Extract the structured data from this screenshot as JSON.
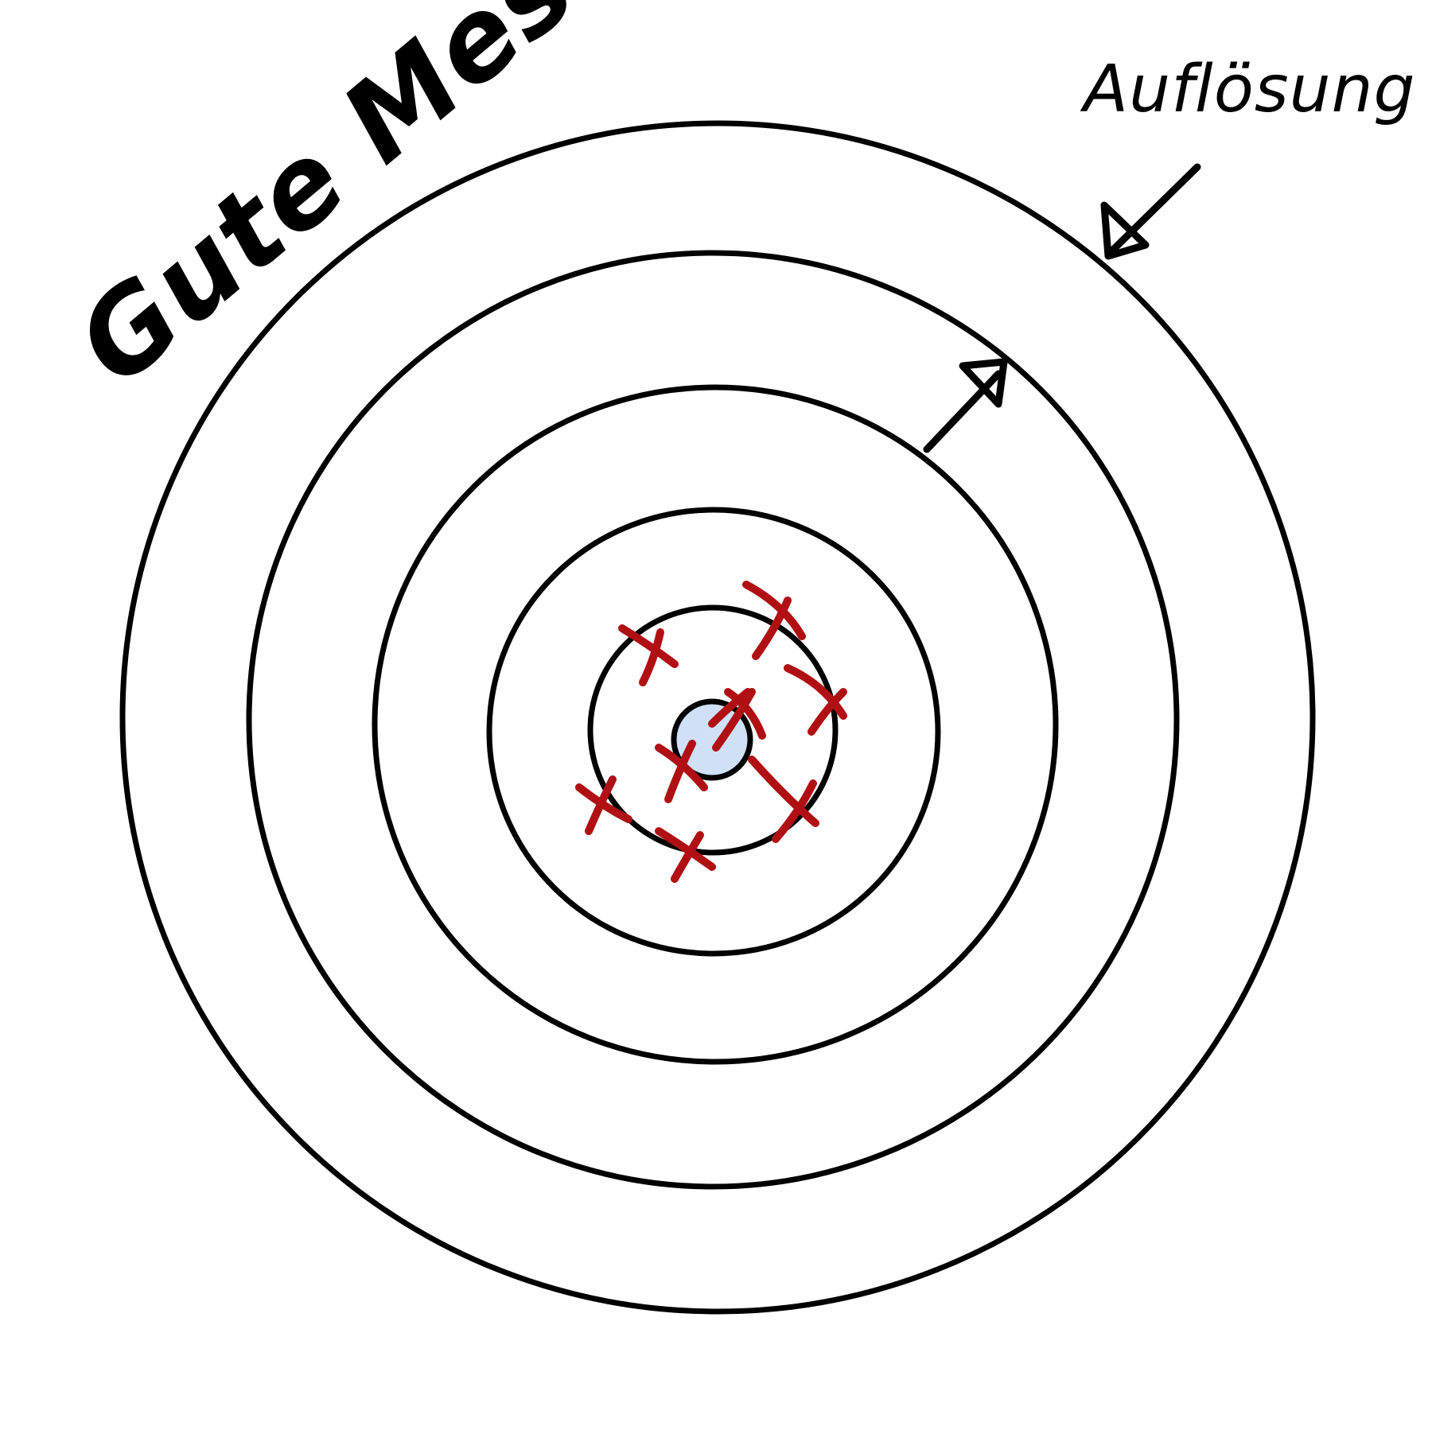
{
  "title": "Gute Messung",
  "resolution_label": "Auflösung",
  "colors": {
    "ink": "#000000",
    "marks": "#b01014",
    "bullseye_fill": "#cfe0f7",
    "background": "#ffffff"
  },
  "target": {
    "ring_count": 5,
    "bullseye": "bullseye",
    "hit_count": 9
  }
}
